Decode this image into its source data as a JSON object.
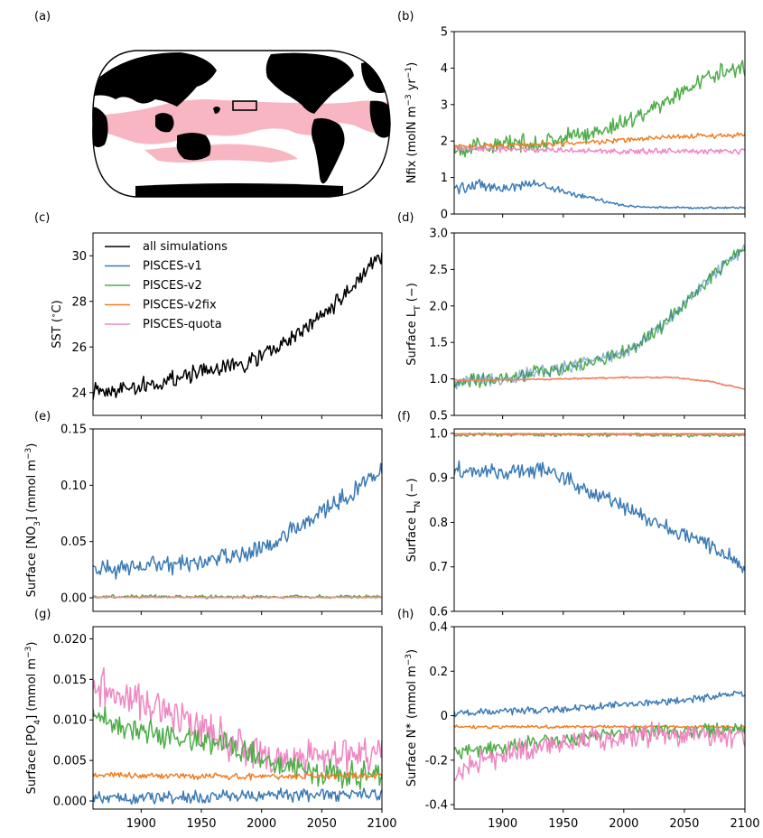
{
  "colors": {
    "v1": "#3a7ab5",
    "v2": "#4dad48",
    "v2fix": "#f07f22",
    "quota": "#ef86c2",
    "all": "#000000",
    "oligo": "#f7b6c2",
    "land": "#000000"
  },
  "map": {
    "panel_label": "(a)",
    "region": "oligotrophic gyre mask (pink) with study box in the central Pacific"
  },
  "chart_data": [
    {
      "panel": "(b)",
      "type": "line",
      "ylabel": "Nfix (molN m$^{-3}$ yr$^{-1}$)",
      "ylabel_parts": [
        "Nfix (molN m",
        "−3",
        " yr",
        "−1",
        ")"
      ],
      "xlim": [
        1860,
        2100
      ],
      "ylim": [
        0,
        5
      ],
      "xticks": [
        1900,
        1950,
        2000,
        2050,
        2100
      ],
      "yticks": [
        0,
        1,
        2,
        3,
        4,
        5
      ],
      "ytick_labels": [
        "0",
        "1",
        "2",
        "3",
        "4",
        "5"
      ],
      "show_xtick_labels": false,
      "series": [
        {
          "key": "v1",
          "keyframes": [
            [
              1860,
              0.7
            ],
            [
              1880,
              0.8
            ],
            [
              1900,
              0.7
            ],
            [
              1930,
              0.85
            ],
            [
              1950,
              0.6
            ],
            [
              1975,
              0.45
            ],
            [
              1995,
              0.25
            ],
            [
              2010,
              0.2
            ],
            [
              2030,
              0.18
            ],
            [
              2060,
              0.17
            ],
            [
              2100,
              0.17
            ]
          ],
          "noise": 0.13,
          "noise_end": 0.02
        },
        {
          "key": "v2",
          "keyframes": [
            [
              1860,
              1.8
            ],
            [
              1900,
              1.9
            ],
            [
              1940,
              2.0
            ],
            [
              1970,
              2.2
            ],
            [
              2000,
              2.5
            ],
            [
              2030,
              3.0
            ],
            [
              2060,
              3.6
            ],
            [
              2080,
              3.9
            ],
            [
              2100,
              4.0
            ]
          ],
          "noise": 0.18
        },
        {
          "key": "v2fix",
          "keyframes": [
            [
              1860,
              1.85
            ],
            [
              1950,
              1.92
            ],
            [
              2000,
              2.02
            ],
            [
              2050,
              2.13
            ],
            [
              2100,
              2.17
            ]
          ],
          "noise": 0.05
        },
        {
          "key": "quota",
          "keyframes": [
            [
              1860,
              1.8
            ],
            [
              1950,
              1.75
            ],
            [
              2000,
              1.72
            ],
            [
              2100,
              1.72
            ]
          ],
          "noise": 0.06
        }
      ]
    },
    {
      "panel": "(c)",
      "type": "line",
      "ylabel": "SST ($^\\circ$C)",
      "ylabel_parts": [
        "SST (",
        "∘",
        "C)"
      ],
      "xlim": [
        1860,
        2100
      ],
      "ylim": [
        23,
        31
      ],
      "xticks": [
        1900,
        1950,
        2000,
        2050,
        2100
      ],
      "yticks": [
        24,
        26,
        28,
        30
      ],
      "ytick_labels": [
        "24",
        "26",
        "28",
        "30"
      ],
      "show_xtick_labels": false,
      "legend": {
        "placement": "upper-left",
        "entries": [
          {
            "key": "all",
            "label": "all simulations"
          },
          {
            "key": "v1",
            "label": "PISCES-v1"
          },
          {
            "key": "v2",
            "label": "PISCES-v2"
          },
          {
            "key": "v2fix",
            "label": "PISCES-v2fix"
          },
          {
            "key": "quota",
            "label": "PISCES-quota"
          }
        ]
      },
      "series": [
        {
          "key": "all",
          "keyframes": [
            [
              1860,
              24.1
            ],
            [
              1890,
              24.2
            ],
            [
              1920,
              24.5
            ],
            [
              1950,
              24.9
            ],
            [
              1980,
              25.2
            ],
            [
              2000,
              25.6
            ],
            [
              2030,
              26.5
            ],
            [
              2060,
              27.8
            ],
            [
              2085,
              29.2
            ],
            [
              2100,
              30.0
            ]
          ],
          "noise": 0.28
        }
      ]
    },
    {
      "panel": "(d)",
      "type": "line",
      "ylabel": "Surface L$_T$ (−)",
      "ylabel_parts": [
        "Surface L",
        "T",
        " (−)"
      ],
      "xlim": [
        1860,
        2100
      ],
      "ylim": [
        0.5,
        3.0
      ],
      "xticks": [
        1900,
        1950,
        2000,
        2050,
        2100
      ],
      "yticks": [
        0.5,
        1.0,
        1.5,
        2.0,
        2.5,
        3.0
      ],
      "ytick_labels": [
        "0.5",
        "1.0",
        "1.5",
        "2.0",
        "2.5",
        "3.0"
      ],
      "show_xtick_labels": false,
      "series": [
        {
          "key": "v2",
          "keyframes": [
            [
              1860,
              0.95
            ],
            [
              1900,
              1.0
            ],
            [
              1950,
              1.15
            ],
            [
              2000,
              1.35
            ],
            [
              2030,
              1.7
            ],
            [
              2060,
              2.2
            ],
            [
              2085,
              2.6
            ],
            [
              2100,
              2.8
            ]
          ],
          "noise": 0.07
        },
        {
          "key": "v1",
          "keyframes": [
            [
              1860,
              0.95
            ],
            [
              1900,
              1.0
            ],
            [
              1950,
              1.15
            ],
            [
              2000,
              1.35
            ],
            [
              2030,
              1.7
            ],
            [
              2060,
              2.2
            ],
            [
              2085,
              2.6
            ],
            [
              2100,
              2.8
            ]
          ],
          "noise": 0.07,
          "opacity": 0.55
        },
        {
          "key": "v2fix",
          "keyframes": [
            [
              1860,
              0.98
            ],
            [
              1950,
              1.0
            ],
            [
              2000,
              1.02
            ],
            [
              2040,
              1.02
            ],
            [
              2070,
              0.97
            ],
            [
              2100,
              0.86
            ]
          ],
          "noise": 0.008
        },
        {
          "key": "quota",
          "keyframes": [
            [
              1860,
              0.98
            ],
            [
              1950,
              1.0
            ],
            [
              2000,
              1.02
            ],
            [
              2040,
              1.02
            ],
            [
              2070,
              0.97
            ],
            [
              2100,
              0.86
            ]
          ],
          "noise": 0.008,
          "opacity": 0.45
        }
      ]
    },
    {
      "panel": "(e)",
      "type": "line",
      "ylabel": "Surface [NO$_3$] (mmol m$^{-3}$)",
      "ylabel_parts": [
        "Surface [NO",
        "3",
        "] (mmol m",
        "−3",
        ")"
      ],
      "xlim": [
        1860,
        2100
      ],
      "ylim": [
        -0.012,
        0.15
      ],
      "xticks": [
        1900,
        1950,
        2000,
        2050,
        2100
      ],
      "yticks": [
        0.0,
        0.05,
        0.1,
        0.15
      ],
      "ytick_labels": [
        "0.00",
        "0.05",
        "0.10",
        "0.15"
      ],
      "show_xtick_labels": false,
      "series": [
        {
          "key": "v1",
          "keyframes": [
            [
              1860,
              0.025
            ],
            [
              1900,
              0.027
            ],
            [
              1950,
              0.032
            ],
            [
              1980,
              0.037
            ],
            [
              2010,
              0.05
            ],
            [
              2040,
              0.07
            ],
            [
              2070,
              0.09
            ],
            [
              2100,
              0.112
            ]
          ],
          "noise": 0.006
        },
        {
          "key": "v2",
          "keyframes": [
            [
              1860,
              0.001
            ],
            [
              2100,
              0.001
            ]
          ],
          "noise": 0.0012
        },
        {
          "key": "v2fix",
          "keyframes": [
            [
              1860,
              0.0005
            ],
            [
              2100,
              0.0005
            ]
          ],
          "noise": 0.0003
        },
        {
          "key": "quota",
          "keyframes": [
            [
              1860,
              0.0004
            ],
            [
              2100,
              0.0004
            ]
          ],
          "noise": 0.0002
        }
      ]
    },
    {
      "panel": "(f)",
      "type": "line",
      "ylabel": "Surface L$_N$ (−)",
      "ylabel_parts": [
        "Surface L",
        "N",
        " (−)"
      ],
      "xlim": [
        1860,
        2100
      ],
      "ylim": [
        0.6,
        1.01
      ],
      "xticks": [
        1900,
        1950,
        2000,
        2050,
        2100
      ],
      "yticks": [
        0.6,
        0.7,
        0.8,
        0.9,
        1.0
      ],
      "ytick_labels": [
        "0.6",
        "0.7",
        "0.8",
        "0.9",
        "1.0"
      ],
      "show_xtick_labels": false,
      "series": [
        {
          "key": "v1",
          "keyframes": [
            [
              1860,
              0.92
            ],
            [
              1900,
              0.91
            ],
            [
              1930,
              0.92
            ],
            [
              1950,
              0.9
            ],
            [
              1980,
              0.86
            ],
            [
              2010,
              0.82
            ],
            [
              2040,
              0.78
            ],
            [
              2070,
              0.75
            ],
            [
              2100,
              0.7
            ]
          ],
          "noise": 0.014
        },
        {
          "key": "v2",
          "keyframes": [
            [
              1860,
              0.997
            ],
            [
              2100,
              0.996
            ]
          ],
          "noise": 0.003
        },
        {
          "key": "quota",
          "keyframes": [
            [
              1860,
              0.998
            ],
            [
              2100,
              0.998
            ]
          ],
          "noise": 0.001
        },
        {
          "key": "v2fix",
          "keyframes": [
            [
              1860,
              0.999
            ],
            [
              2100,
              0.999
            ]
          ],
          "noise": 0.0006
        }
      ]
    },
    {
      "panel": "(g)",
      "type": "line",
      "ylabel": "Surface [PO$_4$] (mmol m$^{-3}$)",
      "ylabel_parts": [
        "Surface [PO",
        "4",
        "] (mmol m",
        "−3",
        ")"
      ],
      "xlim": [
        1860,
        2100
      ],
      "ylim": [
        -0.001,
        0.0215
      ],
      "xticks": [
        1900,
        1950,
        2000,
        2050,
        2100
      ],
      "yticks": [
        0.0,
        0.005,
        0.01,
        0.015,
        0.02
      ],
      "ytick_labels": [
        "0.000",
        "0.005",
        "0.010",
        "0.015",
        "0.020"
      ],
      "xtick_labels": [
        "1900",
        "1950",
        "2000",
        "2050",
        "2100"
      ],
      "show_xtick_labels": true,
      "series": [
        {
          "key": "v1",
          "keyframes": [
            [
              1860,
              0.0003
            ],
            [
              1950,
              0.0005
            ],
            [
              2000,
              0.0007
            ],
            [
              2100,
              0.0008
            ]
          ],
          "noise": 0.0006
        },
        {
          "key": "quota",
          "keyframes": [
            [
              1860,
              0.014
            ],
            [
              1890,
              0.013
            ],
            [
              1920,
              0.011
            ],
            [
              1950,
              0.009
            ],
            [
              1980,
              0.007
            ],
            [
              2010,
              0.005
            ],
            [
              2040,
              0.005
            ],
            [
              2070,
              0.0055
            ],
            [
              2100,
              0.006
            ]
          ],
          "noise": 0.0018
        },
        {
          "key": "v2",
          "keyframes": [
            [
              1860,
              0.011
            ],
            [
              1890,
              0.009
            ],
            [
              1920,
              0.008
            ],
            [
              1950,
              0.0075
            ],
            [
              1980,
              0.0065
            ],
            [
              2010,
              0.0045
            ],
            [
              2040,
              0.0035
            ],
            [
              2070,
              0.0033
            ],
            [
              2100,
              0.0033
            ]
          ],
          "noise": 0.0012
        },
        {
          "key": "v2fix",
          "keyframes": [
            [
              1860,
              0.0032
            ],
            [
              2000,
              0.003
            ],
            [
              2100,
              0.0031
            ]
          ],
          "noise": 0.0003
        }
      ]
    },
    {
      "panel": "(h)",
      "type": "line",
      "ylabel": "Surface N* (mmol m$^{-3}$)",
      "ylabel_parts": [
        "Surface N",
        "∗",
        " (mmol m",
        "−3",
        ")"
      ],
      "xlim": [
        1860,
        2100
      ],
      "ylim": [
        -0.42,
        0.4
      ],
      "xticks": [
        1900,
        1950,
        2000,
        2050,
        2100
      ],
      "yticks": [
        -0.4,
        -0.2,
        0.0,
        0.2,
        0.4
      ],
      "ytick_labels": [
        "-0.4",
        "-0.2",
        "0",
        "0.2",
        "0.4"
      ],
      "xtick_labels": [
        "1900",
        "1950",
        "2000",
        "2050",
        "2100"
      ],
      "show_xtick_labels": true,
      "series": [
        {
          "key": "v1",
          "keyframes": [
            [
              1860,
              0.01
            ],
            [
              1900,
              0.02
            ],
            [
              1950,
              0.03
            ],
            [
              2000,
              0.05
            ],
            [
              2050,
              0.07
            ],
            [
              2100,
              0.1
            ]
          ],
          "noise": 0.012
        },
        {
          "key": "v2fix",
          "keyframes": [
            [
              1860,
              -0.05
            ],
            [
              2100,
              -0.05
            ]
          ],
          "noise": 0.005
        },
        {
          "key": "v2",
          "keyframes": [
            [
              1860,
              -0.17
            ],
            [
              1900,
              -0.14
            ],
            [
              1950,
              -0.11
            ],
            [
              2000,
              -0.08
            ],
            [
              2050,
              -0.07
            ],
            [
              2100,
              -0.06
            ]
          ],
          "noise": 0.025
        },
        {
          "key": "quota",
          "keyframes": [
            [
              1860,
              -0.25
            ],
            [
              1900,
              -0.17
            ],
            [
              1950,
              -0.11
            ],
            [
              2000,
              -0.09
            ],
            [
              2050,
              -0.08
            ],
            [
              2100,
              -0.1
            ]
          ],
          "noise": 0.04
        }
      ]
    }
  ]
}
